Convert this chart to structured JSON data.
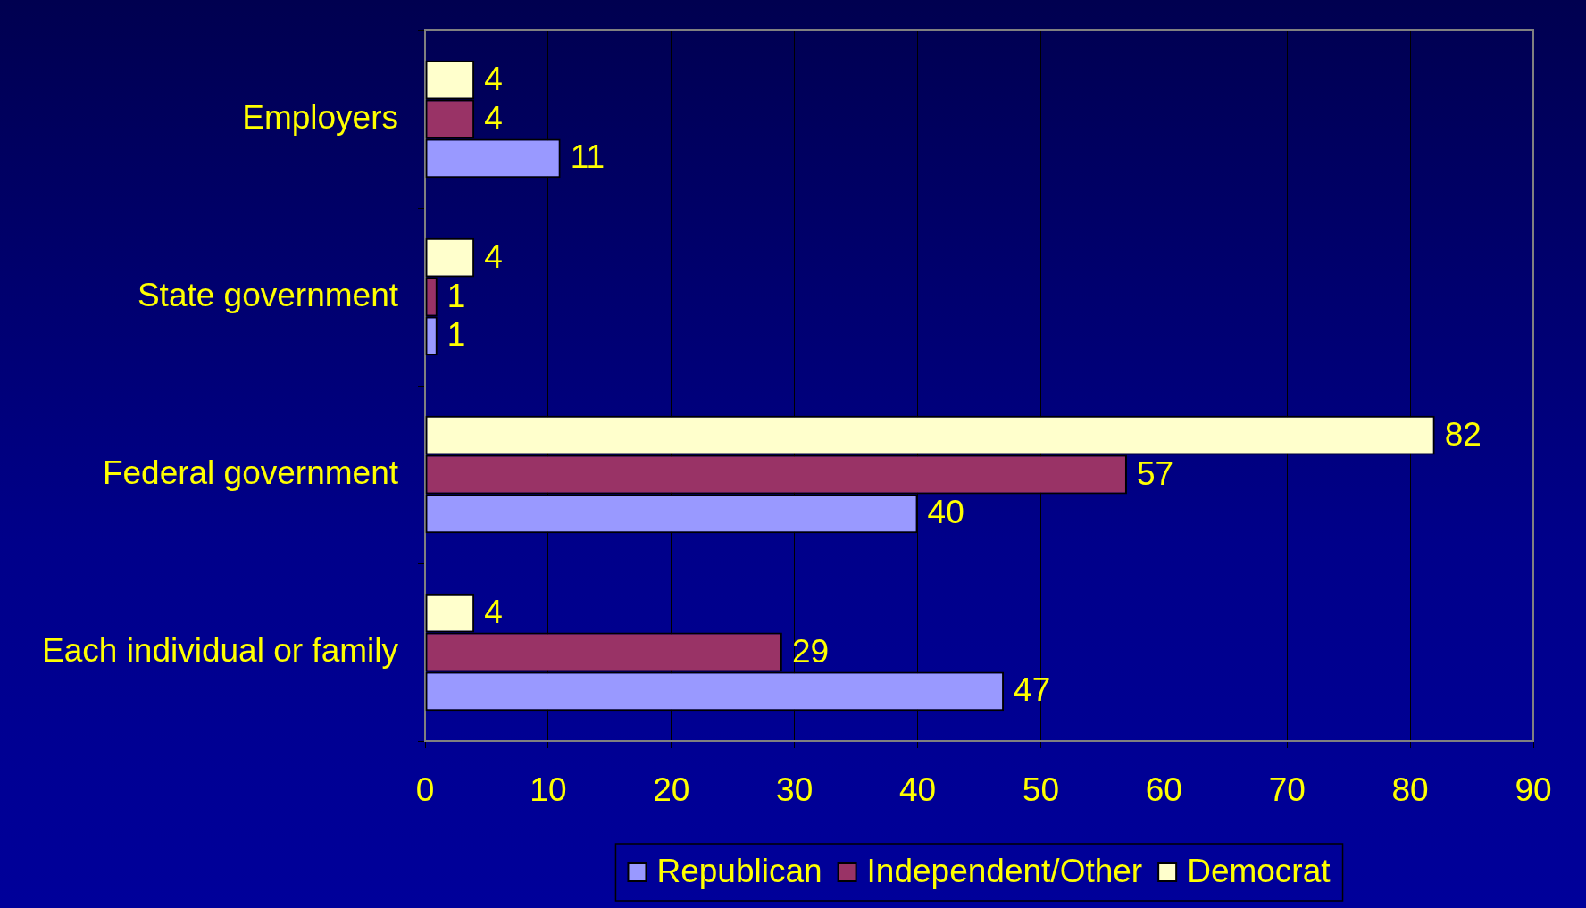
{
  "chart_data": {
    "type": "bar",
    "orientation": "horizontal",
    "categories": [
      "Employers",
      "State government",
      "Federal government",
      "Each individual or family"
    ],
    "series": [
      {
        "name": "Republican",
        "color": "#9999ff",
        "values": [
          11,
          1,
          40,
          47
        ]
      },
      {
        "name": "Independent/Other",
        "color": "#993366",
        "values": [
          4,
          1,
          57,
          29
        ]
      },
      {
        "name": "Democrat",
        "color": "#ffffcc",
        "values": [
          4,
          4,
          82,
          4
        ]
      }
    ],
    "xlim": [
      0,
      90
    ],
    "xticks": [
      0,
      10,
      20,
      30,
      40,
      50,
      60,
      70,
      80,
      90
    ],
    "grid": "x",
    "legend": "bottom",
    "data_labels": true
  }
}
